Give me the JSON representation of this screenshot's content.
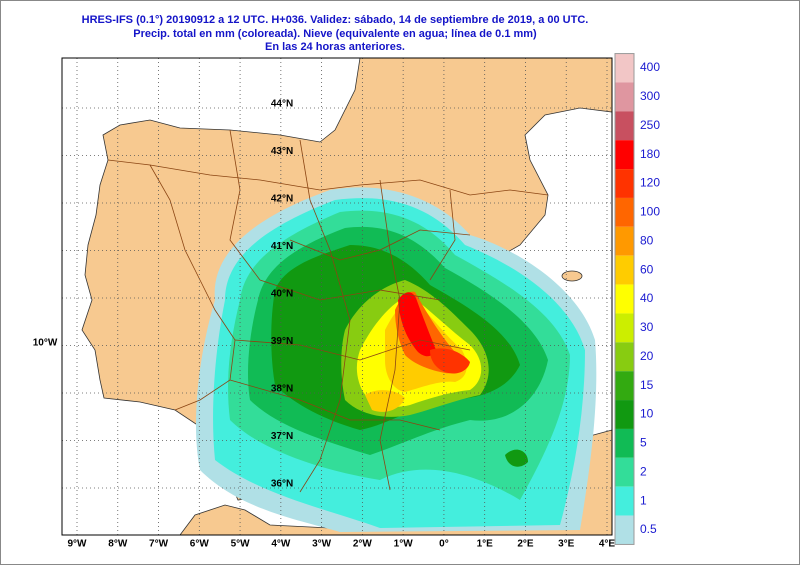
{
  "header": {
    "lines": [
      "HRES-IFS (0.1°) 20190912 a 12 UTC.  H+036. Validez: sábado, 14 de septiembre de 2019,  a  00 UTC.",
      "Precip. total en mm (coloreada). Nieve (equivalente en agua; línea de 0.1 mm)",
      "En las 24 horas anteriores."
    ]
  },
  "colorbar": {
    "levels": [
      {
        "label": "400",
        "color": "#f2c6c6"
      },
      {
        "label": "300",
        "color": "#df96a0"
      },
      {
        "label": "250",
        "color": "#c85060"
      },
      {
        "label": "180",
        "color": "#ff0000"
      },
      {
        "label": "120",
        "color": "#ff3300"
      },
      {
        "label": "100",
        "color": "#ff6600"
      },
      {
        "label": "80",
        "color": "#ff9900"
      },
      {
        "label": "60",
        "color": "#ffcc00"
      },
      {
        "label": "40",
        "color": "#ffff00"
      },
      {
        "label": "30",
        "color": "#ccee00"
      },
      {
        "label": "20",
        "color": "#88cc11"
      },
      {
        "label": "15",
        "color": "#33aa11"
      },
      {
        "label": "10",
        "color": "#119911"
      },
      {
        "label": "5",
        "color": "#11bb55"
      },
      {
        "label": "2",
        "color": "#33dd99"
      },
      {
        "label": "1",
        "color": "#44eedd"
      },
      {
        "label": "0.5",
        "color": "#b0e0e6"
      }
    ]
  },
  "longitude_labels": [
    "9°W",
    "8°W",
    "7°W",
    "6°W",
    "5°W",
    "4°W",
    "3°W",
    "2°W",
    "1°W",
    "0°",
    "1°E",
    "2°E",
    "3°E",
    "4°E"
  ],
  "latitude_labels": [
    "44°N",
    "43°N",
    "42°N",
    "41°N",
    "40°N",
    "39°N",
    "38°N",
    "37°N",
    "36°N"
  ],
  "side_label": "10°W"
}
